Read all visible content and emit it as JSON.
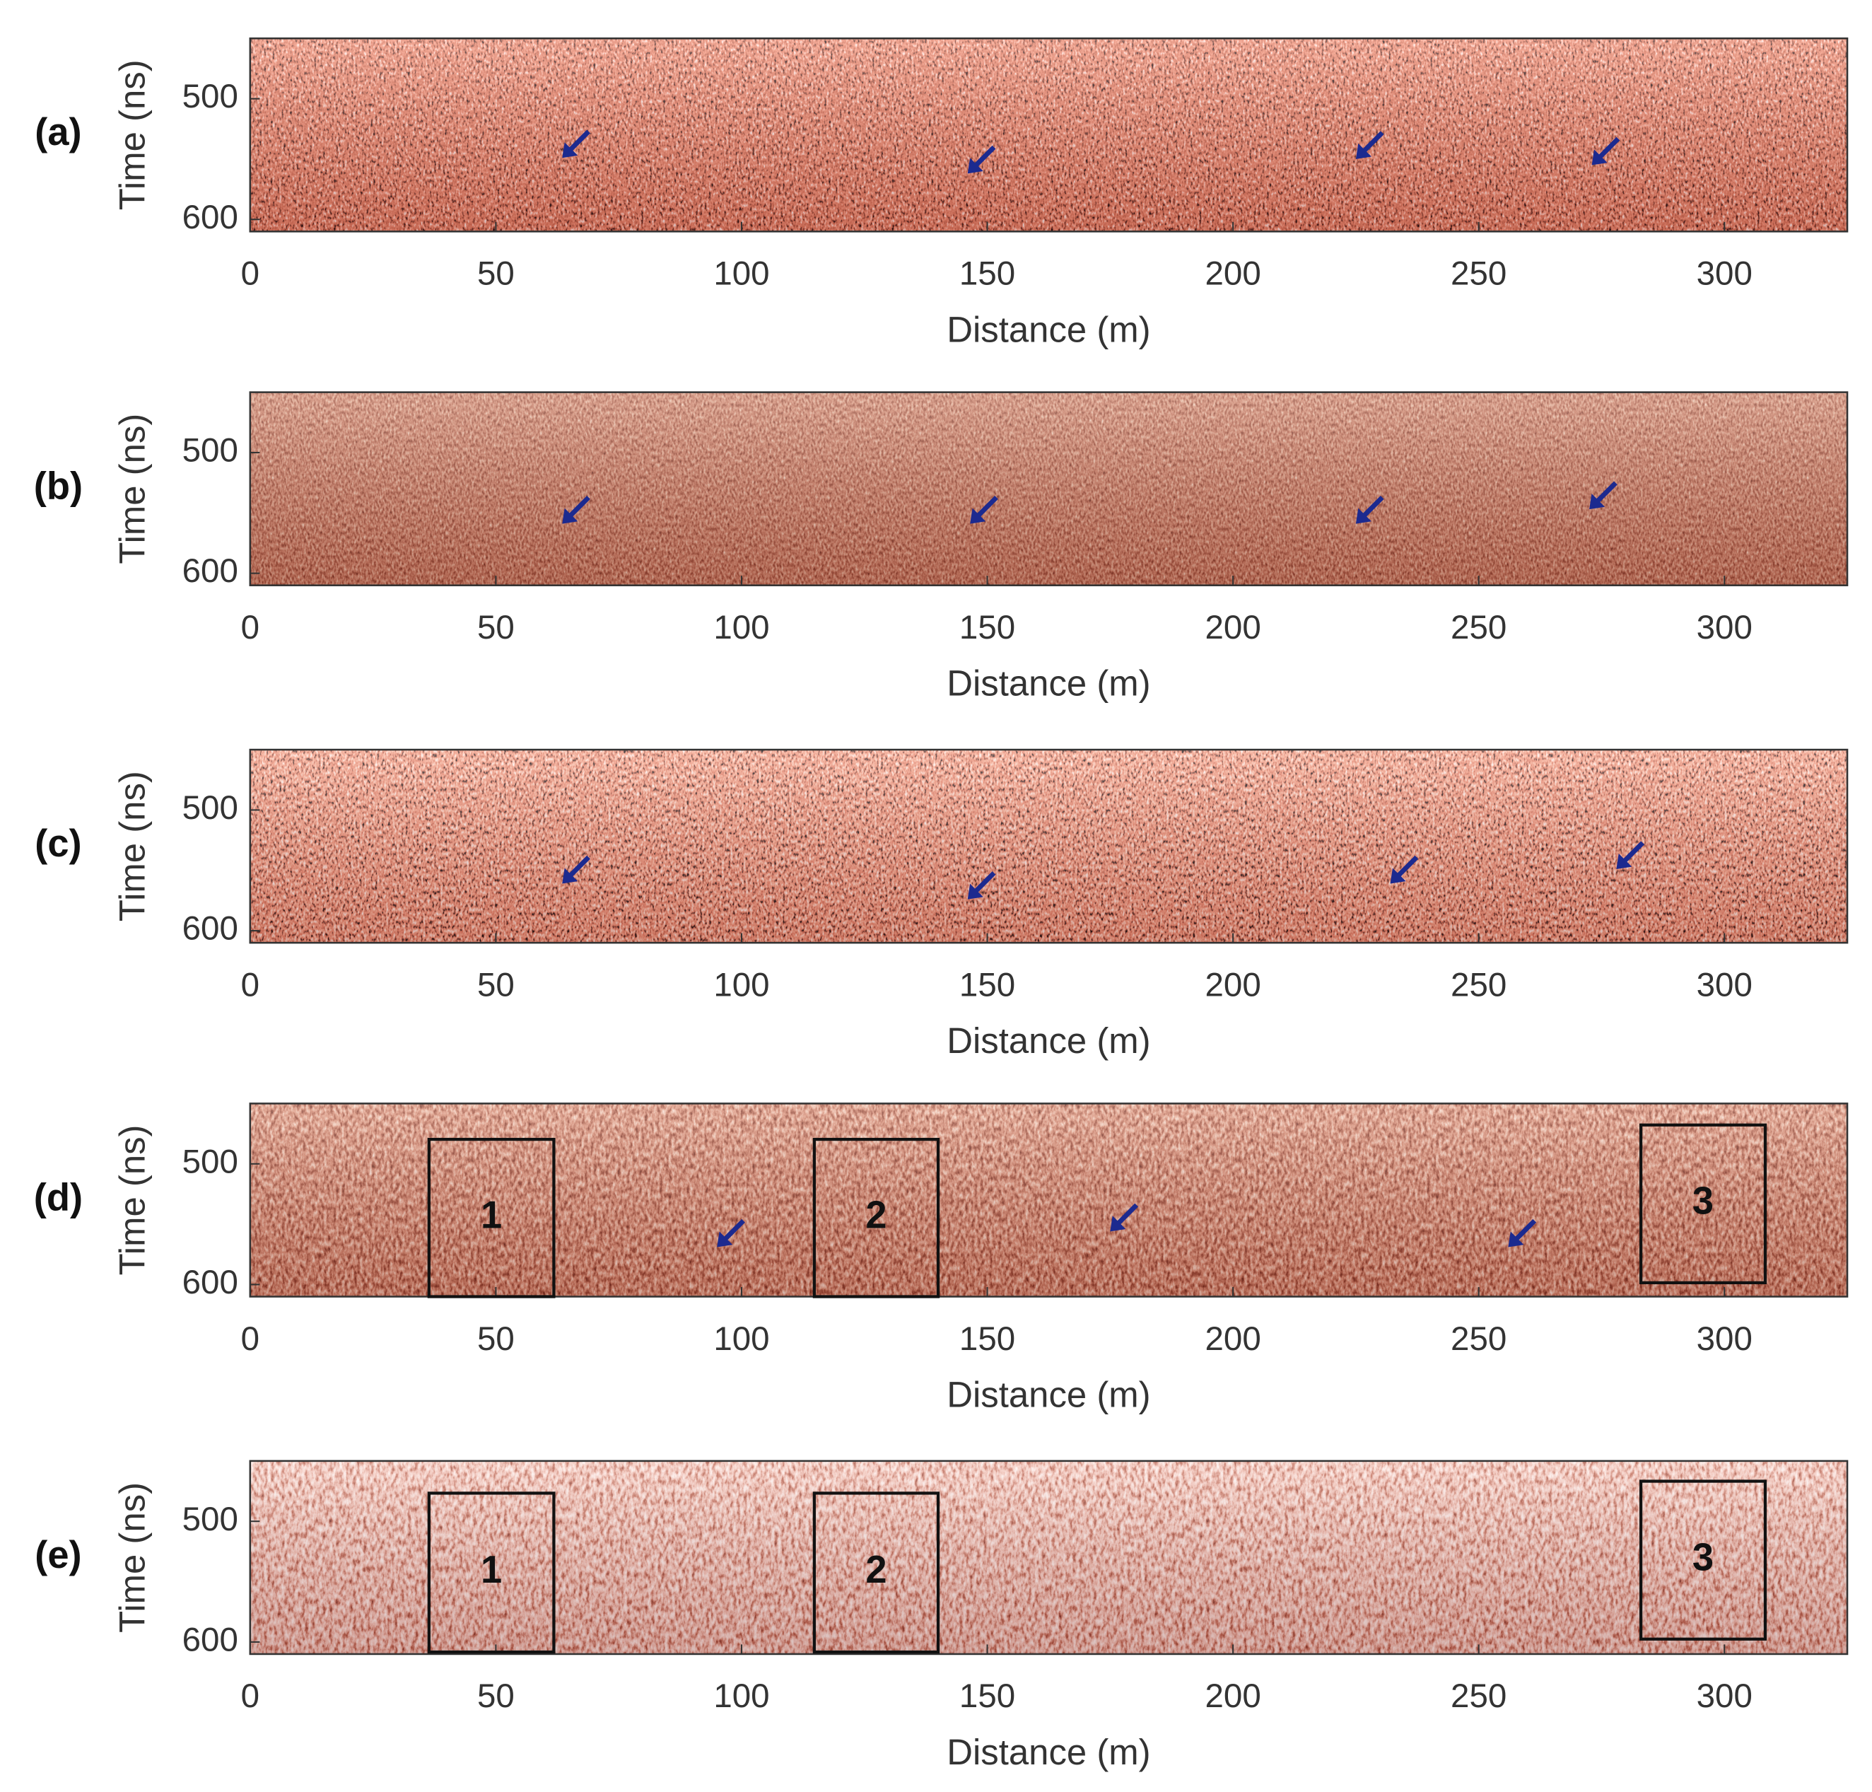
{
  "chart_data": [
    {
      "type": "image",
      "panel_label": "(a)",
      "xlabel": "Distance (m)",
      "ylabel": "Time (ns)",
      "xlim": [
        0,
        325
      ],
      "ylim": [
        450,
        610
      ],
      "y_reversed": true,
      "xticks": [
        0,
        50,
        100,
        150,
        200,
        250,
        300
      ],
      "yticks": [
        500,
        600
      ],
      "arrows": {
        "color": "#1c2a8f",
        "x": [
          63.5,
          146,
          225,
          273
        ],
        "y": [
          549,
          562,
          550,
          555
        ]
      }
    },
    {
      "type": "image",
      "panel_label": "(b)",
      "xlabel": "Distance (m)",
      "ylabel": "Time (ns)",
      "xlim": [
        0,
        325
      ],
      "ylim": [
        450,
        610
      ],
      "y_reversed": true,
      "xticks": [
        0,
        50,
        100,
        150,
        200,
        250,
        300
      ],
      "yticks": [
        500,
        600
      ],
      "arrows": {
        "color": "#1c2a8f",
        "x": [
          63.5,
          146.5,
          225,
          272.5
        ],
        "y": [
          559,
          559,
          559,
          547
        ]
      }
    },
    {
      "type": "image",
      "panel_label": "(c)",
      "xlabel": "Distance (m)",
      "ylabel": "Time (ns)",
      "xlim": [
        0,
        325
      ],
      "ylim": [
        450,
        610
      ],
      "y_reversed": true,
      "xticks": [
        0,
        50,
        100,
        150,
        200,
        250,
        300
      ],
      "yticks": [
        500,
        600
      ],
      "arrows": {
        "color": "#1c2a8f",
        "x": [
          63.5,
          146,
          232,
          278
        ],
        "y": [
          561,
          574,
          561,
          549
        ]
      }
    },
    {
      "type": "image",
      "panel_label": "(d)",
      "xlabel": "Distance (m)",
      "ylabel": "Time (ns)",
      "xlim": [
        0,
        325
      ],
      "ylim": [
        450,
        610
      ],
      "y_reversed": true,
      "xticks": [
        0,
        50,
        100,
        150,
        200,
        250,
        300
      ],
      "yticks": [
        500,
        600
      ],
      "arrows": {
        "color": "#1c2a8f",
        "x": [
          95,
          175,
          256
        ],
        "y": [
          569,
          556,
          569
        ]
      },
      "boxes": [
        {
          "label": "1",
          "x": [
            36.4,
            61.8
          ],
          "y": [
            479.7,
            610
          ]
        },
        {
          "label": "2",
          "x": [
            114.8,
            140
          ],
          "y": [
            479.7,
            610
          ]
        },
        {
          "label": "3",
          "x": [
            283,
            308.3
          ],
          "y": [
            467.8,
            598.5
          ]
        }
      ]
    },
    {
      "type": "image",
      "panel_label": "(e)",
      "xlabel": "Distance (m)",
      "ylabel": "Time (ns)",
      "xlim": [
        0,
        325
      ],
      "ylim": [
        450,
        610
      ],
      "y_reversed": true,
      "xticks": [
        0,
        50,
        100,
        150,
        200,
        250,
        300
      ],
      "yticks": [
        500,
        600
      ],
      "boxes": [
        {
          "label": "1",
          "x": [
            36.4,
            61.8
          ],
          "y": [
            476.7,
            608.3
          ]
        },
        {
          "label": "2",
          "x": [
            114.8,
            140
          ],
          "y": [
            476.7,
            608.3
          ]
        },
        {
          "label": "3",
          "x": [
            283,
            308.3
          ],
          "y": [
            466.8,
            597.6
          ]
        }
      ]
    }
  ]
}
